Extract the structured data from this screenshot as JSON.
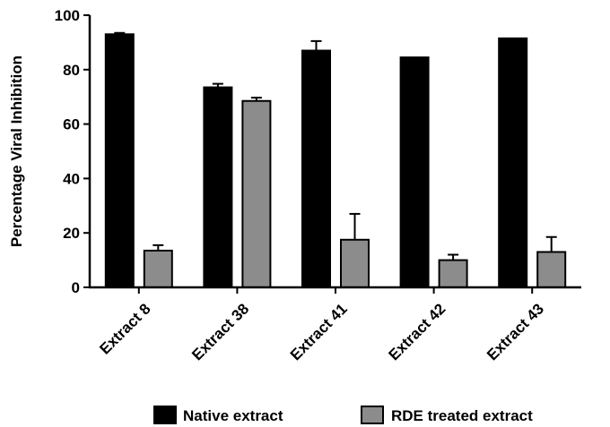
{
  "chart_data": {
    "type": "bar",
    "ylabel": "Percentage Viral Inhibition",
    "xlabel": "",
    "ylim": [
      0,
      100
    ],
    "yticks": [
      0,
      20,
      40,
      60,
      80,
      100
    ],
    "categories": [
      "Extract 8",
      "Extract 38",
      "Extract 41",
      "Extract 42",
      "Extract 43"
    ],
    "series": [
      {
        "name": "Native extract",
        "color": "#000000",
        "values": [
          93,
          73.5,
          87,
          84.5,
          91.5
        ],
        "errors": [
          0.5,
          1.3,
          3.5,
          0,
          0
        ]
      },
      {
        "name": "RDE treated extract",
        "color": "#8c8c8c",
        "values": [
          13.5,
          68.5,
          17.5,
          10,
          13
        ],
        "errors": [
          2,
          1.2,
          9.5,
          2,
          5.5
        ]
      }
    ],
    "legend_position": "bottom",
    "grid": false
  }
}
